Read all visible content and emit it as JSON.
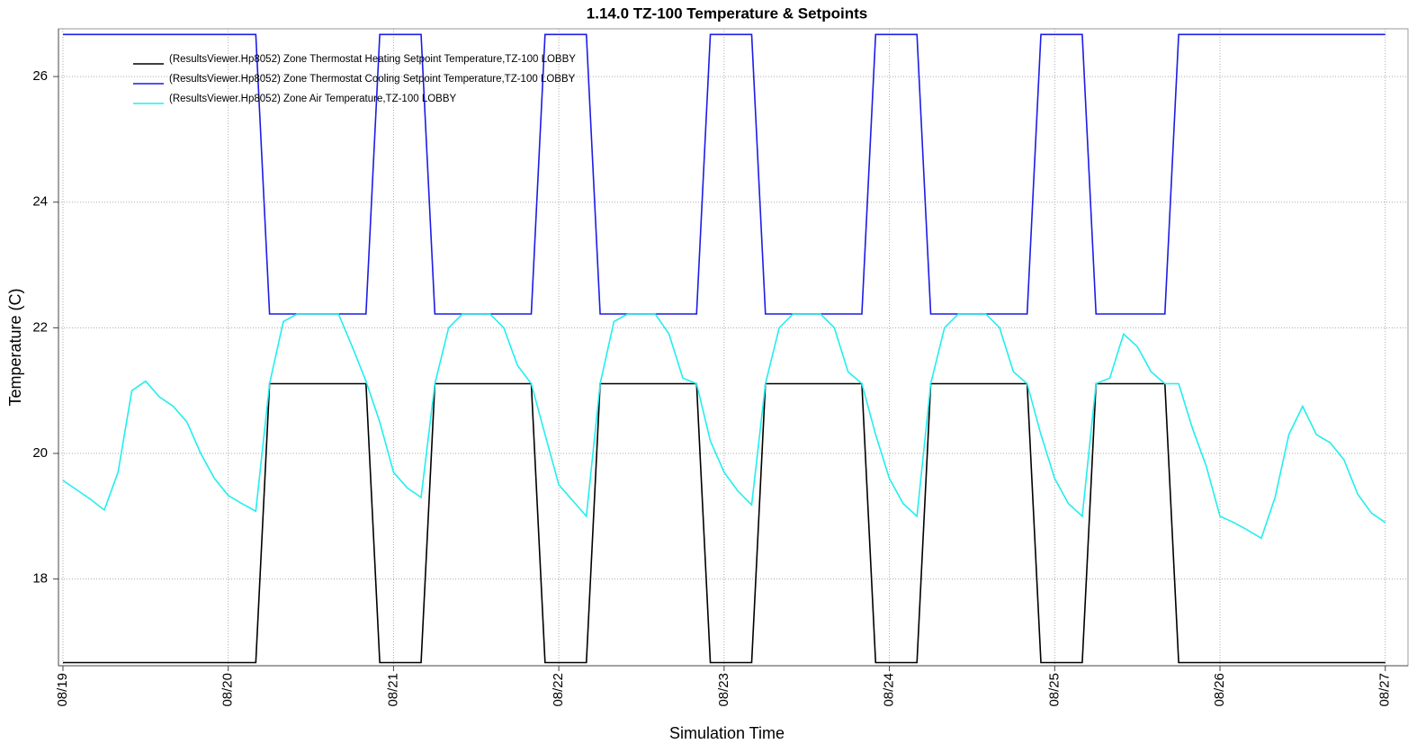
{
  "chart_data": {
    "type": "line",
    "title": "1.14.0 TZ-100 Temperature & Setpoints",
    "x_label": "Simulation Time",
    "y_label": "Temperature (C)",
    "x": [
      0,
      2,
      4,
      6,
      8,
      10,
      12,
      14,
      16,
      18,
      20,
      22,
      24,
      26,
      28,
      30,
      32,
      34,
      36,
      38,
      40,
      42,
      44,
      46,
      48,
      50,
      52,
      54,
      56,
      58,
      60,
      62,
      64,
      66,
      68,
      70,
      72,
      74,
      76,
      78,
      80,
      82,
      84,
      86,
      88,
      90,
      92,
      94,
      96,
      98,
      100,
      102,
      104,
      106,
      108,
      110,
      112,
      114,
      116,
      118,
      120,
      122,
      124,
      126,
      128,
      130,
      132,
      134,
      136,
      138,
      140,
      142,
      144,
      146,
      148,
      150,
      152,
      154,
      156,
      158,
      160,
      162,
      164,
      166,
      168,
      170,
      172,
      174,
      176,
      178,
      180,
      182,
      184,
      186,
      188,
      190,
      192
    ],
    "xlim": [
      -0.65,
      195.3
    ],
    "xticks": [
      {
        "value": 0,
        "label": "08/19"
      },
      {
        "value": 24,
        "label": "08/20"
      },
      {
        "value": 48,
        "label": "08/21"
      },
      {
        "value": 72,
        "label": "08/22"
      },
      {
        "value": 96,
        "label": "08/23"
      },
      {
        "value": 120,
        "label": "08/24"
      },
      {
        "value": 144,
        "label": "08/25"
      },
      {
        "value": 168,
        "label": "08/26"
      },
      {
        "value": 192,
        "label": "08/27"
      }
    ],
    "ylim": [
      16.62,
      26.76
    ],
    "yticks": [
      18,
      20,
      22,
      24,
      26
    ],
    "grid": true,
    "legend": "upper left",
    "series": [
      {
        "name": "(ResultsViewer.Hp8052) Zone Thermostat Heating Setpoint Temperature,TZ-100 LOBBY",
        "color": "#000000",
        "values": [
          16.67,
          16.67,
          16.67,
          16.67,
          16.67,
          16.67,
          16.67,
          16.67,
          16.67,
          16.67,
          16.67,
          16.67,
          16.67,
          16.67,
          16.67,
          21.11,
          21.11,
          21.11,
          21.11,
          21.11,
          21.11,
          21.11,
          21.11,
          16.67,
          16.67,
          16.67,
          16.67,
          21.11,
          21.11,
          21.11,
          21.11,
          21.11,
          21.11,
          21.11,
          21.11,
          16.67,
          16.67,
          16.67,
          16.67,
          21.11,
          21.11,
          21.11,
          21.11,
          21.11,
          21.11,
          21.11,
          21.11,
          16.67,
          16.67,
          16.67,
          16.67,
          21.11,
          21.11,
          21.11,
          21.11,
          21.11,
          21.11,
          21.11,
          21.11,
          16.67,
          16.67,
          16.67,
          16.67,
          21.11,
          21.11,
          21.11,
          21.11,
          21.11,
          21.11,
          21.11,
          21.11,
          16.67,
          16.67,
          16.67,
          16.67,
          21.11,
          21.11,
          21.11,
          21.11,
          21.11,
          21.11,
          16.67,
          16.67,
          16.67,
          16.67,
          16.67,
          16.67,
          16.67,
          16.67,
          16.67,
          16.67,
          16.67,
          16.67,
          16.67,
          16.67,
          16.67,
          16.67
        ]
      },
      {
        "name": "(ResultsViewer.Hp8052) Zone Thermostat Cooling Setpoint Temperature,TZ-100 LOBBY",
        "color": "#1c1ce6",
        "values": [
          26.67,
          26.67,
          26.67,
          26.67,
          26.67,
          26.67,
          26.67,
          26.67,
          26.67,
          26.67,
          26.67,
          26.67,
          26.67,
          26.67,
          26.67,
          22.22,
          22.22,
          22.22,
          22.22,
          22.22,
          22.22,
          22.22,
          22.22,
          26.67,
          26.67,
          26.67,
          26.67,
          22.22,
          22.22,
          22.22,
          22.22,
          22.22,
          22.22,
          22.22,
          22.22,
          26.67,
          26.67,
          26.67,
          26.67,
          22.22,
          22.22,
          22.22,
          22.22,
          22.22,
          22.22,
          22.22,
          22.22,
          26.67,
          26.67,
          26.67,
          26.67,
          22.22,
          22.22,
          22.22,
          22.22,
          22.22,
          22.22,
          22.22,
          22.22,
          26.67,
          26.67,
          26.67,
          26.67,
          22.22,
          22.22,
          22.22,
          22.22,
          22.22,
          22.22,
          22.22,
          22.22,
          26.67,
          26.67,
          26.67,
          26.67,
          22.22,
          22.22,
          22.22,
          22.22,
          22.22,
          22.22,
          26.67,
          26.67,
          26.67,
          26.67,
          26.67,
          26.67,
          26.67,
          26.67,
          26.67,
          26.67,
          26.67,
          26.67,
          26.67,
          26.67,
          26.67,
          26.67
        ]
      },
      {
        "name": "(ResultsViewer.Hp8052) Zone Air Temperature,TZ-100 LOBBY",
        "color": "#22eeee",
        "values": [
          19.57,
          19.42,
          19.27,
          19.1,
          19.7,
          21.0,
          21.15,
          20.9,
          20.75,
          20.5,
          20.0,
          19.6,
          19.33,
          19.2,
          19.08,
          21.11,
          22.1,
          22.22,
          22.22,
          22.22,
          22.22,
          21.7,
          21.15,
          20.5,
          19.7,
          19.45,
          19.3,
          21.11,
          22.0,
          22.22,
          22.22,
          22.22,
          22.0,
          21.4,
          21.11,
          20.3,
          19.5,
          19.25,
          19.0,
          21.11,
          22.1,
          22.22,
          22.22,
          22.22,
          21.9,
          21.2,
          21.11,
          20.2,
          19.7,
          19.4,
          19.18,
          21.11,
          22.0,
          22.22,
          22.22,
          22.22,
          22.0,
          21.3,
          21.11,
          20.3,
          19.6,
          19.2,
          19.0,
          21.11,
          22.0,
          22.22,
          22.22,
          22.22,
          22.0,
          21.3,
          21.11,
          20.3,
          19.6,
          19.2,
          19.0,
          21.11,
          21.2,
          21.9,
          21.7,
          21.3,
          21.11,
          21.11,
          20.4,
          19.8,
          19.0,
          18.9,
          18.78,
          18.65,
          19.3,
          20.3,
          20.75,
          20.3,
          20.17,
          19.9,
          19.35,
          19.05,
          18.9
        ]
      }
    ]
  }
}
